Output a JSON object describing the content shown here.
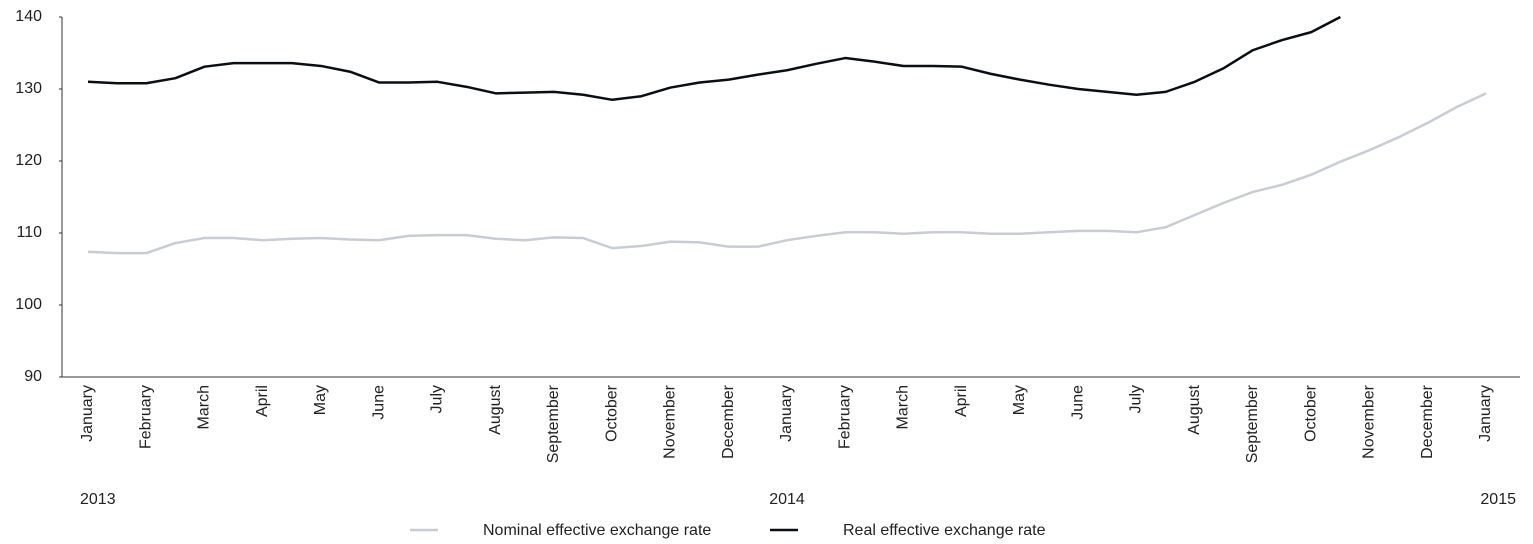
{
  "chart_data": {
    "type": "line",
    "categories": [
      "January",
      null,
      "February",
      null,
      "March",
      null,
      "April",
      null,
      "May",
      null,
      "June",
      null,
      "July",
      null,
      "August",
      null,
      "September",
      null,
      "October",
      null,
      "November",
      null,
      "December",
      null,
      "January",
      null,
      "February",
      null,
      "March",
      null,
      "April",
      null,
      "May",
      null,
      "June",
      null,
      "July",
      null,
      "August",
      null,
      "September",
      null,
      "October",
      null,
      "November",
      null,
      "December",
      null,
      "January"
    ],
    "years": [
      "2013",
      "2014",
      "2015"
    ],
    "series": [
      {
        "name": "Nominal effective exchange rate",
        "color": "#c8ccd4",
        "values": [
          107.4,
          107.2,
          107.2,
          108.6,
          109.3,
          109.3,
          109.0,
          109.2,
          109.3,
          109.1,
          109.0,
          109.6,
          109.7,
          109.7,
          109.2,
          109.0,
          109.4,
          109.3,
          107.9,
          108.2,
          108.8,
          108.7,
          108.1,
          108.1,
          109.0,
          109.6,
          110.1,
          110.1,
          109.9,
          110.1,
          110.1,
          109.9,
          109.9,
          110.1,
          110.3,
          110.3,
          110.1,
          110.8,
          112.5,
          114.2,
          115.7,
          116.7,
          118.1,
          119.9,
          121.5,
          123.3,
          125.3,
          127.5,
          129.4
        ]
      },
      {
        "name": "Real effective exchange rate",
        "color": "#0a0f14",
        "values": [
          131.0,
          130.8,
          130.8,
          131.5,
          133.1,
          133.6,
          133.6,
          133.6,
          133.2,
          132.4,
          130.9,
          130.9,
          131.0,
          130.3,
          129.4,
          129.5,
          129.6,
          129.2,
          128.5,
          129.0,
          130.2,
          130.9,
          131.3,
          132.0,
          132.6,
          133.5,
          134.3,
          133.8,
          133.2,
          133.2,
          133.1,
          132.1,
          131.3,
          130.6,
          130.0,
          129.6,
          129.2,
          129.6,
          131.0,
          132.9,
          135.4,
          136.8,
          137.9,
          140.0,
          null,
          null,
          null,
          null,
          null
        ]
      }
    ],
    "ylim": [
      90,
      140
    ],
    "yticks": [
      90,
      100,
      110,
      120,
      130,
      140
    ],
    "grid": false,
    "legend": "bottom"
  }
}
